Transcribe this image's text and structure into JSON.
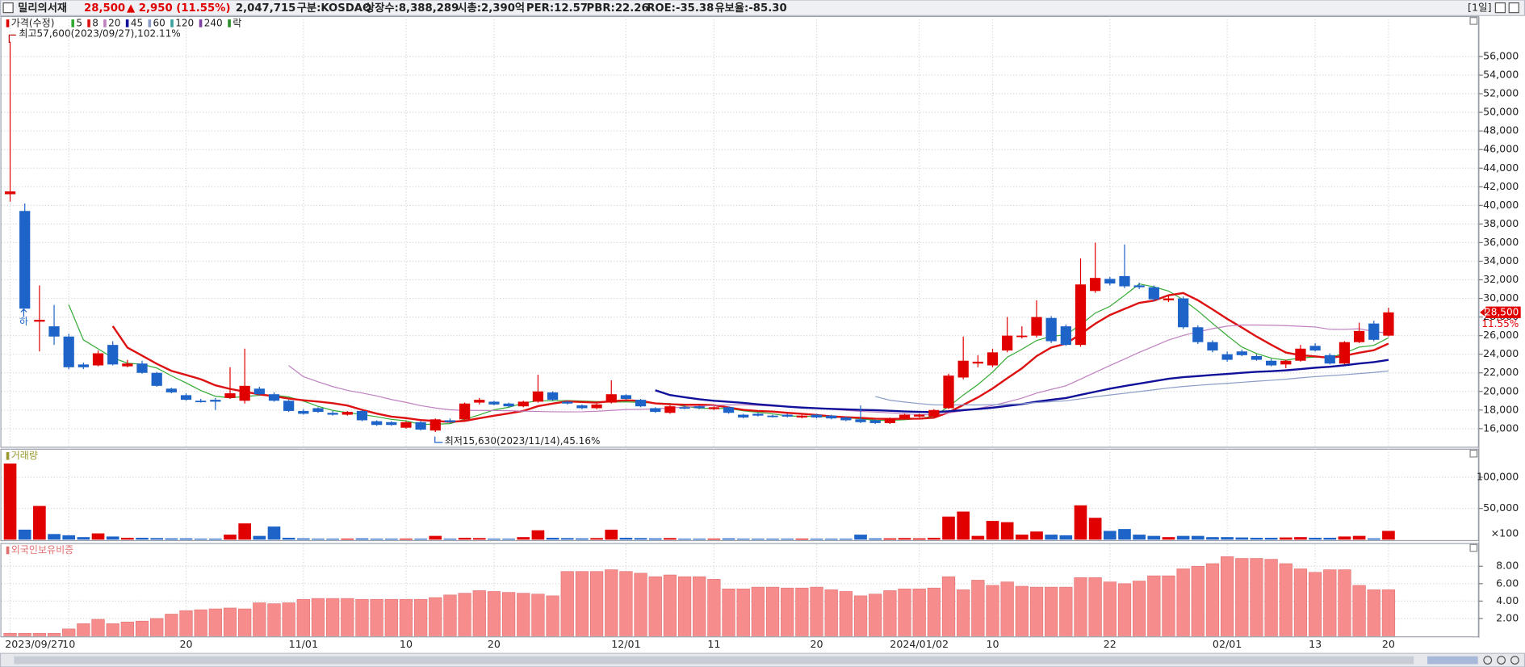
{
  "header": {
    "name": "밀리의서재",
    "price": "28,500",
    "change": "▲ 2,950 (11.55%)",
    "volume": "2,047,715",
    "market": "구분:KOSDAQ",
    "shares": "상장수:8,388,289",
    "cap": "시총:2,390억",
    "per": "PER:12.57",
    "pbr": "PBR:22.26",
    "roe": "ROE:-35.38",
    "reserve": "유보율:-85.30",
    "period": "[1일]"
  },
  "chart_data": [
    {
      "type": "candlestick",
      "legend": "가격(수정)",
      "lock": "락",
      "up_color": "#e00000",
      "down_color": "#1e64c8",
      "ma": [
        {
          "period": 5,
          "color": "#33aa33",
          "width": 1
        },
        {
          "period": 8,
          "color": "#dd1111",
          "width": 2
        },
        {
          "period": 20,
          "color": "#c080c0",
          "width": 1
        },
        {
          "period": 45,
          "color": "#10109a",
          "width": 2
        },
        {
          "period": 60,
          "color": "#8c9cc8",
          "width": 1
        },
        {
          "period": 120,
          "color": "#3aa0a0",
          "width": 1
        },
        {
          "period": 240,
          "color": "#8040a0",
          "width": 1
        }
      ],
      "high_note": "최고57,600(2023/09/27),102.11%",
      "low_note": "최저15,630(2023/11/14),45.16%",
      "limit_note": "하",
      "last_price": "28,500",
      "last_change": "11.55%",
      "grid": true,
      "categories": [
        "2023/09/27",
        null,
        null,
        null,
        "10",
        null,
        null,
        null,
        null,
        null,
        null,
        null,
        "20",
        null,
        null,
        null,
        null,
        null,
        null,
        null,
        "11/01",
        null,
        null,
        null,
        null,
        null,
        null,
        "10",
        null,
        null,
        null,
        null,
        null,
        "20",
        null,
        null,
        null,
        null,
        null,
        null,
        null,
        null,
        "12/01",
        null,
        null,
        null,
        null,
        null,
        "11",
        null,
        null,
        null,
        null,
        null,
        null,
        "20",
        null,
        null,
        null,
        null,
        null,
        null,
        "2024/01/02",
        null,
        null,
        null,
        null,
        "10",
        null,
        null,
        null,
        null,
        null,
        null,
        null,
        "22",
        null,
        null,
        null,
        null,
        null,
        null,
        null,
        "02/01",
        null,
        null,
        null,
        null,
        null,
        "13",
        null,
        null,
        null,
        null,
        "20"
      ],
      "open": [
        41200,
        39400,
        27500,
        27000,
        25900,
        22900,
        22800,
        25000,
        22700,
        23000,
        22000,
        20300,
        19600,
        19000,
        19100,
        19300,
        19000,
        20300,
        19700,
        19000,
        17900,
        18200,
        17700,
        17500,
        17900,
        16800,
        16700,
        16100,
        16700,
        15800,
        16900,
        17000,
        18800,
        18900,
        18700,
        18400,
        18900,
        19900,
        18900,
        18500,
        18200,
        18800,
        19600,
        19100,
        18200,
        17700,
        18300,
        18400,
        18100,
        18300,
        17500,
        17600,
        17400,
        17500,
        17200,
        17500,
        17400,
        17200,
        17000,
        16900,
        16600,
        17100,
        17300,
        17300,
        18200,
        21500,
        23000,
        22800,
        24400,
        25900,
        26000,
        27900,
        27000,
        25000,
        30800,
        32100,
        32400,
        31400,
        31200,
        29800,
        30000,
        26900,
        25300,
        24000,
        24300,
        23800,
        23300,
        22900,
        23300,
        24900,
        23900,
        23000,
        25300,
        27300,
        26000
      ],
      "high": [
        57600,
        40200,
        31400,
        29300,
        26200,
        23100,
        24400,
        25400,
        23400,
        23300,
        22100,
        20400,
        19800,
        19200,
        19300,
        22600,
        24600,
        20500,
        19900,
        19100,
        18100,
        18300,
        17900,
        17900,
        18000,
        16900,
        16800,
        16800,
        16800,
        17100,
        17100,
        18800,
        19300,
        19000,
        18800,
        19000,
        21800,
        20000,
        19000,
        18600,
        18700,
        21200,
        19700,
        19200,
        18300,
        18500,
        18500,
        18500,
        18400,
        18400,
        17600,
        17700,
        17500,
        17600,
        17500,
        17600,
        17500,
        17300,
        18500,
        17000,
        17200,
        17600,
        17600,
        18100,
        21900,
        25900,
        23900,
        24600,
        28000,
        27000,
        29800,
        28100,
        27200,
        34300,
        36000,
        32300,
        35800,
        31700,
        31400,
        30300,
        30200,
        27100,
        25500,
        24300,
        24500,
        24000,
        23500,
        23400,
        25000,
        25200,
        24100,
        25400,
        27400,
        27600,
        29000
      ],
      "low": [
        40400,
        28900,
        24300,
        25000,
        22400,
        22400,
        22700,
        22800,
        22600,
        21900,
        20500,
        19800,
        19000,
        18800,
        18000,
        19200,
        18700,
        19600,
        18900,
        17800,
        17500,
        17700,
        17400,
        17400,
        16800,
        16300,
        16300,
        16000,
        15800,
        15630,
        16600,
        16900,
        18600,
        18500,
        18300,
        18300,
        18800,
        19000,
        18600,
        18100,
        18100,
        18700,
        19100,
        18300,
        17700,
        17600,
        18100,
        18100,
        18000,
        17600,
        17100,
        17300,
        17200,
        17200,
        17100,
        17100,
        17000,
        16800,
        16600,
        16500,
        16500,
        17000,
        17200,
        17200,
        18100,
        21300,
        22600,
        22600,
        24200,
        25700,
        25800,
        25200,
        24900,
        24800,
        30600,
        31400,
        31100,
        31000,
        29700,
        29600,
        26700,
        25100,
        24200,
        23200,
        23800,
        23300,
        22700,
        22500,
        23200,
        24300,
        22900,
        22900,
        25200,
        25400,
        25900
      ],
      "close": [
        41500,
        28900,
        27700,
        25900,
        22600,
        22600,
        24100,
        22900,
        23000,
        22000,
        20600,
        19900,
        19100,
        18900,
        18900,
        19800,
        20600,
        19700,
        19000,
        17900,
        17600,
        17800,
        17500,
        17800,
        16900,
        16400,
        16400,
        16700,
        15900,
        17000,
        16700,
        18700,
        19100,
        18600,
        18400,
        18900,
        20000,
        19100,
        18700,
        18200,
        18600,
        19700,
        19200,
        18400,
        17800,
        18400,
        18200,
        18200,
        18300,
        17700,
        17200,
        17400,
        17300,
        17300,
        17400,
        17200,
        17100,
        16900,
        16700,
        16600,
        17100,
        17500,
        17500,
        18000,
        21700,
        23300,
        23200,
        24200,
        26000,
        26000,
        28000,
        25400,
        25000,
        31500,
        32200,
        31600,
        31300,
        31200,
        29900,
        30000,
        26900,
        25300,
        24400,
        23400,
        23900,
        23400,
        22800,
        23300,
        24600,
        24400,
        23000,
        25300,
        26500,
        25550,
        28500
      ],
      "ylim": [
        14000,
        60300
      ],
      "yticks": [
        {
          "value": 16000,
          "label": "16,000"
        },
        {
          "value": 18000,
          "label": "18,000"
        },
        {
          "value": 20000,
          "label": "20,000"
        },
        {
          "value": 22000,
          "label": "22,000"
        },
        {
          "value": 24000,
          "label": "24,000"
        },
        {
          "value": 26000,
          "label": "26,000"
        },
        {
          "value": 28000,
          "label": "28,000"
        },
        {
          "value": 30000,
          "label": "30,000"
        },
        {
          "value": 32000,
          "label": "32,000"
        },
        {
          "value": 34000,
          "label": "34,000"
        },
        {
          "value": 36000,
          "label": "36,000"
        },
        {
          "value": 38000,
          "label": "38,000"
        },
        {
          "value": 40000,
          "label": "40,000"
        },
        {
          "value": 42000,
          "label": "42,000"
        },
        {
          "value": 44000,
          "label": "44,000"
        },
        {
          "value": 46000,
          "label": "46,000"
        },
        {
          "value": 48000,
          "label": "48,000"
        },
        {
          "value": 50000,
          "label": "50,000"
        },
        {
          "value": 52000,
          "label": "52,000"
        },
        {
          "value": 54000,
          "label": "54,000"
        },
        {
          "value": 56000,
          "label": "56,000"
        }
      ]
    },
    {
      "type": "bar",
      "title": "거래량",
      "unit": "×100",
      "grid": true,
      "values": [
        122000,
        16000,
        54000,
        9000,
        7000,
        4000,
        10000,
        5000,
        3000,
        3000,
        2500,
        2000,
        2000,
        1500,
        1500,
        8000,
        26000,
        6000,
        21000,
        3000,
        2000,
        1500,
        1500,
        1500,
        2000,
        1500,
        1500,
        1500,
        1500,
        6000,
        1500,
        3000,
        2500,
        1500,
        1500,
        4000,
        15000,
        3000,
        2500,
        2000,
        2500,
        16000,
        3000,
        2500,
        2000,
        2500,
        1500,
        1500,
        1500,
        2000,
        1500,
        1500,
        1500,
        1500,
        1500,
        1500,
        1500,
        1500,
        8000,
        2000,
        2000,
        2500,
        2000,
        3000,
        37000,
        45000,
        6000,
        30000,
        28000,
        8000,
        13000,
        8000,
        7000,
        55000,
        35000,
        14000,
        17000,
        8000,
        6000,
        4000,
        6000,
        6000,
        4000,
        4000,
        3500,
        3000,
        3000,
        3500,
        4000,
        3000,
        3000,
        5000,
        6000,
        2000,
        14000
      ],
      "ylim": [
        0,
        145000
      ],
      "yticks": [
        {
          "value": 50000,
          "label": "50,000"
        },
        {
          "value": 100000,
          "label": "100,000"
        }
      ]
    },
    {
      "type": "bar",
      "title": "외국인보유비중",
      "color": "#f78c8c",
      "grid": true,
      "values": [
        0.3,
        0.3,
        0.3,
        0.3,
        0.8,
        1.4,
        1.9,
        1.4,
        1.6,
        1.7,
        2.0,
        2.5,
        2.9,
        3.0,
        3.1,
        3.2,
        3.1,
        3.8,
        3.7,
        3.8,
        4.2,
        4.3,
        4.3,
        4.3,
        4.2,
        4.2,
        4.2,
        4.2,
        4.2,
        4.4,
        4.7,
        4.9,
        5.2,
        5.1,
        5.0,
        4.9,
        4.8,
        4.6,
        7.4,
        7.4,
        7.4,
        7.6,
        7.4,
        7.2,
        6.8,
        7.0,
        6.8,
        6.8,
        6.5,
        5.4,
        5.4,
        5.6,
        5.6,
        5.5,
        5.5,
        5.6,
        5.3,
        5.1,
        4.6,
        4.8,
        5.2,
        5.4,
        5.4,
        5.5,
        6.8,
        5.3,
        6.4,
        5.8,
        6.2,
        5.7,
        5.6,
        5.6,
        5.6,
        6.7,
        6.7,
        6.2,
        6.0,
        6.3,
        6.9,
        6.9,
        7.7,
        8.0,
        8.3,
        9.1,
        8.9,
        8.9,
        8.8,
        8.3,
        7.7,
        7.3,
        7.6,
        7.6,
        5.8,
        5.3,
        5.3
      ],
      "ylim": [
        0,
        10.5
      ],
      "yticks": [
        {
          "value": 2,
          "label": "2.00"
        },
        {
          "value": 4,
          "label": "4.00"
        },
        {
          "value": 6,
          "label": "6.00"
        },
        {
          "value": 8,
          "label": "8.00"
        }
      ]
    }
  ]
}
